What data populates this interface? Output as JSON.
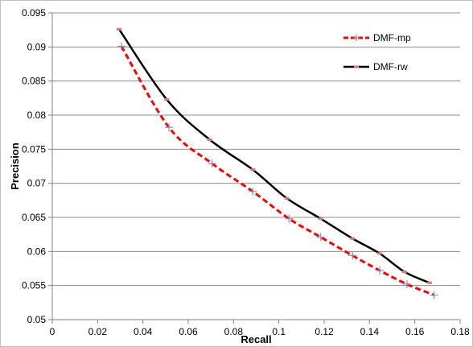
{
  "chart_data": {
    "type": "line",
    "title": "",
    "xlabel": "Recall",
    "ylabel": "Precision",
    "xlim": [
      0,
      0.18
    ],
    "ylim": [
      0.05,
      0.095
    ],
    "x_ticks": [
      0,
      0.02,
      0.04,
      0.06,
      0.08,
      0.1,
      0.12,
      0.14,
      0.16,
      0.18
    ],
    "x_tick_labels": [
      "0",
      "0.02",
      "0.04",
      "0.06",
      "0.08",
      "0.1",
      "0.12",
      "0.14",
      "0.16",
      "0.18"
    ],
    "y_ticks": [
      0.05,
      0.055,
      0.06,
      0.065,
      0.07,
      0.075,
      0.08,
      0.085,
      0.09,
      0.095
    ],
    "y_tick_labels": [
      "0.05",
      "0.055",
      "0.06",
      "0.065",
      "0.07",
      "0.075",
      "0.08",
      "0.085",
      "0.09",
      "0.095"
    ],
    "grid": "horizontal",
    "legend_position": "top-right",
    "series": [
      {
        "name": "DMF-mp",
        "color": "#ff0000",
        "line_style": "dashed",
        "marker": "plus",
        "x": [
          0.0305,
          0.0515,
          0.0705,
          0.0885,
          0.1045,
          0.1185,
          0.1325,
          0.1445,
          0.1565,
          0.1685
        ],
        "y": [
          0.0901,
          0.0782,
          0.0729,
          0.0688,
          0.0648,
          0.0621,
          0.0594,
          0.0572,
          0.0552,
          0.0536
        ]
      },
      {
        "name": "DMF-rw",
        "color": "#000000",
        "line_style": "solid",
        "marker": "dash",
        "x": [
          0.0295,
          0.0505,
          0.0695,
          0.0885,
          0.1035,
          0.1185,
          0.1325,
          0.1445,
          0.1555,
          0.1665
        ],
        "y": [
          0.0926,
          0.0823,
          0.0764,
          0.072,
          0.0678,
          0.0648,
          0.0619,
          0.0597,
          0.057,
          0.0554
        ]
      }
    ]
  }
}
